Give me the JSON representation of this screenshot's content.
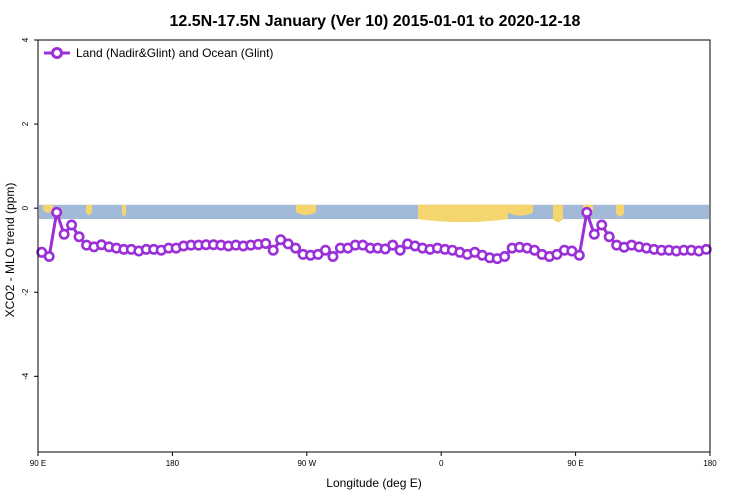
{
  "chart_data": {
    "type": "line",
    "title": "12.5N-17.5N January (Ver 10)   2015-01-01 to 2020-12-18",
    "xlabel": "Longitude (deg E)",
    "ylabel": "XCO2 - MLO trend (ppm)",
    "xlim": [
      90,
      450
    ],
    "ylim": [
      -5.8,
      4
    ],
    "x_ticks": [
      {
        "value": 90,
        "label": "90 E"
      },
      {
        "value": 162,
        "label": "180"
      },
      {
        "value": 234,
        "label": "90 W"
      },
      {
        "value": 306,
        "label": "0"
      },
      {
        "value": 378,
        "label": "90 E"
      },
      {
        "value": 450,
        "label": "180"
      }
    ],
    "y_ticks": [
      {
        "value": -4,
        "label": "-4"
      },
      {
        "value": -2,
        "label": "-2"
      },
      {
        "value": 0,
        "label": "0"
      },
      {
        "value": 2,
        "label": "2"
      },
      {
        "value": 4,
        "label": "4"
      }
    ],
    "grid": false,
    "legend_position": "top-left",
    "series": [
      {
        "name": "Land (Nadir&Glint) and Ocean (Glint)",
        "color": "#9b30d9",
        "x": [
          92,
          96,
          100,
          104,
          108,
          112,
          116,
          120,
          124,
          128,
          132,
          136,
          140,
          144,
          148,
          152,
          156,
          160,
          164,
          168,
          172,
          176,
          180,
          184,
          188,
          192,
          196,
          200,
          204,
          208,
          212,
          216,
          220,
          224,
          228,
          232,
          236,
          240,
          244,
          248,
          252,
          256,
          260,
          264,
          268,
          272,
          276,
          280,
          284,
          288,
          292,
          296,
          300,
          304,
          308,
          312,
          316,
          320,
          324,
          328,
          332,
          336,
          340,
          344,
          348,
          352,
          356,
          360,
          364,
          368,
          372,
          376,
          380,
          384,
          388,
          392,
          396,
          400,
          404,
          408,
          412,
          416,
          420,
          424,
          428,
          432,
          436,
          440,
          444,
          448
        ],
        "y": [
          -1.05,
          -1.15,
          -0.1,
          -0.62,
          -0.4,
          -0.68,
          -0.88,
          -0.92,
          -0.87,
          -0.92,
          -0.95,
          -0.98,
          -0.98,
          -1.02,
          -0.98,
          -0.98,
          -1.0,
          -0.95,
          -0.95,
          -0.9,
          -0.88,
          -0.88,
          -0.87,
          -0.87,
          -0.88,
          -0.9,
          -0.88,
          -0.9,
          -0.88,
          -0.86,
          -0.84,
          -1.0,
          -0.75,
          -0.85,
          -0.95,
          -1.1,
          -1.12,
          -1.1,
          -1.0,
          -1.15,
          -0.95,
          -0.95,
          -0.88,
          -0.88,
          -0.95,
          -0.95,
          -0.97,
          -0.88,
          -1.0,
          -0.85,
          -0.9,
          -0.95,
          -0.98,
          -0.95,
          -0.98,
          -1.0,
          -1.05,
          -1.1,
          -1.05,
          -1.12,
          -1.18,
          -1.2,
          -1.15,
          -0.95,
          -0.93,
          -0.95,
          -1.0,
          -1.1,
          -1.15,
          -1.1,
          -1.0,
          -1.02,
          -1.12,
          -0.1,
          -0.62,
          -0.4,
          -0.68,
          -0.88,
          -0.93,
          -0.88,
          -0.92,
          -0.95,
          -0.98,
          -1.0,
          -1.0,
          -1.02,
          -1.0,
          -1.0,
          -1.02,
          -0.98
        ]
      }
    ],
    "map_colors": {
      "ocean": "#a3b9d8",
      "land": "#f5d66e"
    }
  }
}
